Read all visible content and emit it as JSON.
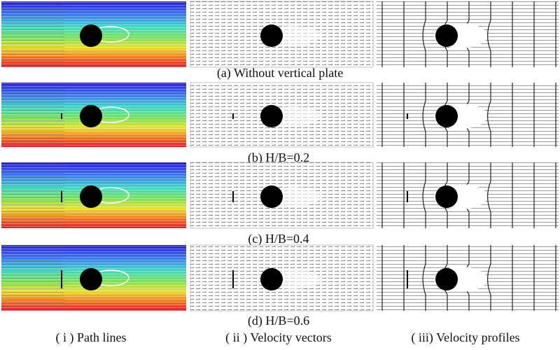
{
  "figure": {
    "captions": [
      "(a)  Without vertical plate",
      "(b)  H/B=0.2",
      "(c)  H/B=0.4",
      "(d)  H/B=0.6"
    ],
    "column_labels": [
      "( i )  Path lines",
      "( ii )  Velocity vectors",
      "( iii)  Velocity profiles"
    ]
  }
}
